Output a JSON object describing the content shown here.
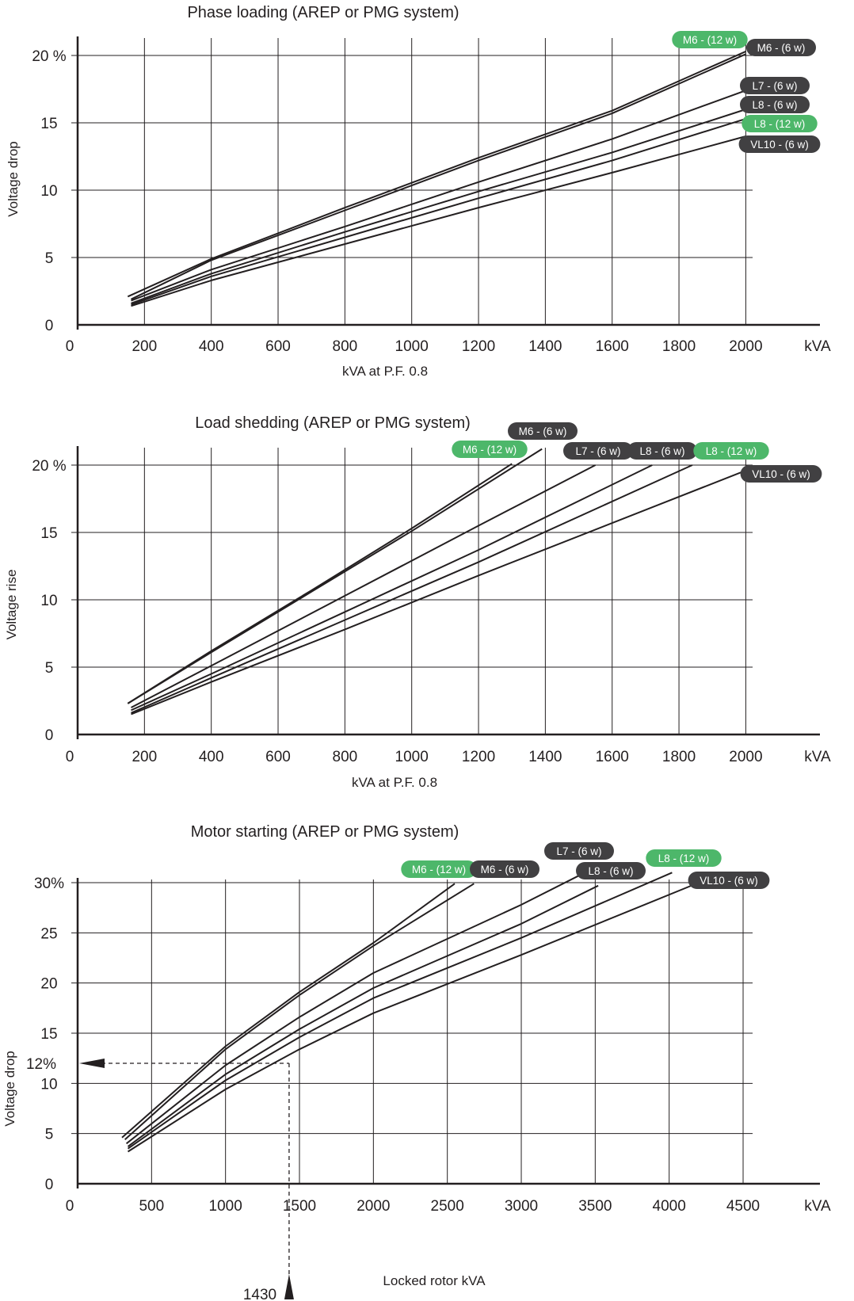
{
  "chart_data": [
    {
      "type": "line",
      "title": "Phase loading (AREP or PMG system)",
      "xlabel": "kVA at P.F. 0.8",
      "ylabel": "Voltage drop",
      "x_unit": "kVA",
      "xlim": [
        0,
        2100
      ],
      "ylim": [
        0,
        20
      ],
      "x_ticks": [
        "0",
        "200",
        "400",
        "600",
        "800",
        "1000",
        "1200",
        "1400",
        "1600",
        "1800",
        "2000"
      ],
      "y_ticks": [
        "0",
        "5",
        "10",
        "15",
        "20 %"
      ],
      "grid": true,
      "series": [
        {
          "name": "M6 - (12 w)",
          "color": "#4db76a",
          "x": [
            150,
            400,
            800,
            1200,
            1600,
            2000
          ],
          "y": [
            2.1,
            4.9,
            8.7,
            12.4,
            15.9,
            20.3
          ]
        },
        {
          "name": "M6 - (6 w)",
          "color": "#414042",
          "x": [
            160,
            400,
            800,
            1200,
            1600,
            2000
          ],
          "y": [
            1.9,
            4.8,
            8.5,
            12.2,
            15.7,
            20.1
          ]
        },
        {
          "name": "L7 - (6 w)",
          "color": "#414042",
          "x": [
            160,
            400,
            800,
            1200,
            1600,
            2000
          ],
          "y": [
            1.8,
            4.1,
            7.3,
            10.6,
            13.8,
            17.4
          ]
        },
        {
          "name": "L8 - (6 w)",
          "color": "#414042",
          "x": [
            160,
            400,
            800,
            1200,
            1600,
            2000
          ],
          "y": [
            1.6,
            3.8,
            6.9,
            9.9,
            12.8,
            16.0
          ]
        },
        {
          "name": "L8 - (12 w)",
          "color": "#4db76a",
          "x": [
            160,
            400,
            800,
            1200,
            1600,
            2000
          ],
          "y": [
            1.5,
            3.6,
            6.5,
            9.4,
            12.2,
            15.3
          ]
        },
        {
          "name": "VL10 - (6 w)",
          "color": "#414042",
          "x": [
            160,
            400,
            800,
            1200,
            1600,
            2000
          ],
          "y": [
            1.4,
            3.3,
            6.0,
            8.7,
            11.3,
            14.0
          ]
        }
      ]
    },
    {
      "type": "line",
      "title": "Load shedding (AREP or PMG system)",
      "xlabel": "kVA at P.F. 0.8",
      "ylabel": "Voltage rise",
      "x_unit": "kVA",
      "xlim": [
        0,
        2100
      ],
      "ylim": [
        0,
        20
      ],
      "x_ticks": [
        "0",
        "200",
        "400",
        "600",
        "800",
        "1000",
        "1200",
        "1400",
        "1600",
        "1800",
        "2000"
      ],
      "y_ticks": [
        "0",
        "5",
        "10",
        "15",
        "20 %"
      ],
      "grid": true,
      "series": [
        {
          "name": "M6 - (12 w)",
          "color": "#4db76a",
          "x": [
            150,
            400,
            700,
            1000,
            1300
          ],
          "y": [
            2.3,
            6.2,
            10.7,
            15.3,
            20.1
          ]
        },
        {
          "name": "M6 - (6 w)",
          "color": "#414042",
          "x": [
            150,
            400,
            700,
            1000,
            1390
          ],
          "y": [
            2.3,
            6.1,
            10.6,
            15.1,
            21.2
          ]
        },
        {
          "name": "L7 - (6 w)",
          "color": "#414042",
          "x": [
            160,
            400,
            800,
            1200,
            1550
          ],
          "y": [
            2.0,
            5.1,
            10.3,
            15.5,
            20.0
          ]
        },
        {
          "name": "L8 - (6 w)",
          "color": "#414042",
          "x": [
            160,
            400,
            800,
            1200,
            1720
          ],
          "y": [
            1.8,
            4.5,
            9.1,
            13.7,
            20.0
          ]
        },
        {
          "name": "L8 - (12 w)",
          "color": "#4db76a",
          "x": [
            160,
            400,
            800,
            1200,
            1840
          ],
          "y": [
            1.6,
            4.2,
            8.5,
            12.8,
            20.0
          ]
        },
        {
          "name": "VL10 - (6 w)",
          "color": "#414042",
          "x": [
            160,
            400,
            800,
            1200,
            2000
          ],
          "y": [
            1.5,
            3.9,
            7.8,
            11.8,
            19.6
          ]
        }
      ]
    },
    {
      "type": "line",
      "title": "Motor starting (AREP or PMG system)",
      "xlabel": "Locked rotor kVA",
      "ylabel": "Voltage drop",
      "x_unit": "kVA",
      "xlim": [
        0,
        4700
      ],
      "ylim": [
        0,
        30
      ],
      "x_ticks": [
        "0",
        "500",
        "1000",
        "1500",
        "2000",
        "2500",
        "3000",
        "3500",
        "4000",
        "4500"
      ],
      "y_ticks": [
        "0",
        "5",
        "10",
        "15",
        "20",
        "25",
        "30%"
      ],
      "grid": true,
      "series": [
        {
          "name": "M6 - (12 w)",
          "color": "#4db76a",
          "x": [
            300,
            1000,
            1500,
            2000,
            2550
          ],
          "y": [
            4.6,
            13.7,
            19.1,
            24.0,
            29.9
          ]
        },
        {
          "name": "M6 - (6 w)",
          "color": "#414042",
          "x": [
            320,
            1000,
            1500,
            2000,
            2680
          ],
          "y": [
            4.4,
            13.4,
            18.8,
            23.7,
            29.9
          ]
        },
        {
          "name": "L7 - (6 w)",
          "color": "#414042",
          "x": [
            330,
            1000,
            1500,
            2000,
            3000,
            3430
          ],
          "y": [
            4.0,
            11.8,
            16.6,
            21.0,
            27.8,
            31.0
          ]
        },
        {
          "name": "L8 - (6 w)",
          "color": "#414042",
          "x": [
            340,
            1000,
            1500,
            2000,
            3000,
            3520
          ],
          "y": [
            3.7,
            10.9,
            15.4,
            19.5,
            25.9,
            29.7
          ]
        },
        {
          "name": "L8 - (12 w)",
          "color": "#4db76a",
          "x": [
            340,
            1000,
            1500,
            2000,
            3000,
            4020
          ],
          "y": [
            3.5,
            10.3,
            14.6,
            18.5,
            24.5,
            31.0
          ]
        },
        {
          "name": "VL10 - (6 w)",
          "color": "#414042",
          "x": [
            340,
            1000,
            1500,
            2000,
            3000,
            4200
          ],
          "y": [
            3.2,
            9.4,
            13.4,
            17.0,
            22.8,
            30.0
          ]
        }
      ],
      "annotation": {
        "x": 1430,
        "y": 12,
        "x_label": "1430",
        "y_label": "12%"
      }
    }
  ]
}
